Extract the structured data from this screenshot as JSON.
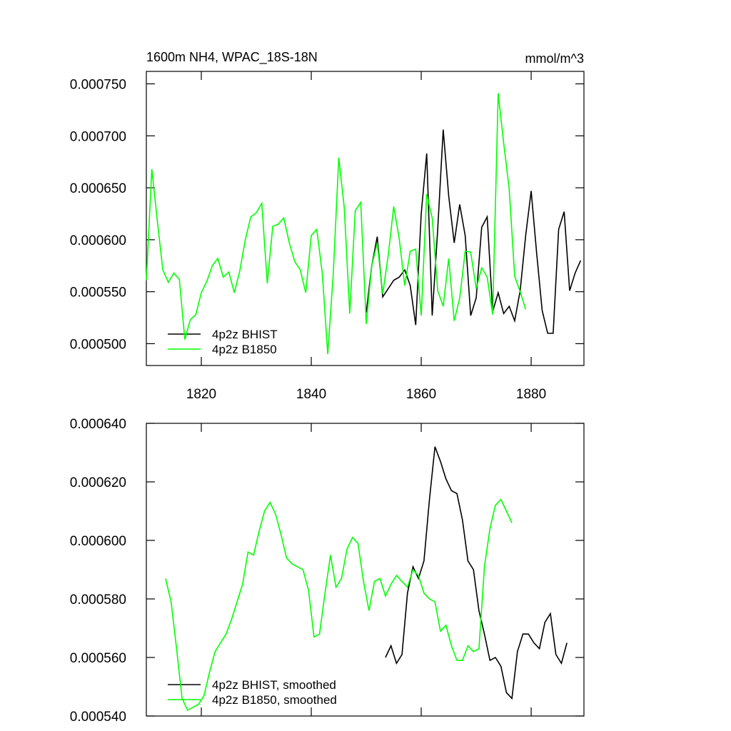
{
  "chart_data": [
    {
      "type": "line",
      "title": "1600m NH4, WPAC_18S-18N",
      "units": "mmol/m^3",
      "xlim": [
        1810,
        1889.6
      ],
      "xticks": [
        1820,
        1840,
        1860,
        1880
      ],
      "ylim": [
        0.000479,
        0.000762
      ],
      "yticks": [
        {
          "value": 0.0005,
          "label": "0.000500"
        },
        {
          "value": 0.00055,
          "label": "0.000550"
        },
        {
          "value": 0.0006,
          "label": "0.000600"
        },
        {
          "value": 0.00065,
          "label": "0.000650"
        },
        {
          "value": 0.0007,
          "label": "0.000700"
        },
        {
          "value": 0.00075,
          "label": "0.000750"
        }
      ],
      "legend": "lower left",
      "series": [
        {
          "name": "4p2z BHIST",
          "color": "#000000",
          "x": [
            1850,
            1851,
            1852,
            1853,
            1854,
            1855,
            1856,
            1857,
            1858,
            1859,
            1860,
            1861,
            1862,
            1863,
            1864,
            1865,
            1866,
            1867,
            1868,
            1869,
            1870,
            1871,
            1872,
            1873,
            1874,
            1875,
            1876,
            1877,
            1878,
            1879,
            1880,
            1881,
            1882,
            1883,
            1884,
            1885,
            1886,
            1887,
            1888,
            1889
          ],
          "values": [
            0.00053,
            0.000575,
            0.000603,
            0.000545,
            0.000553,
            0.000561,
            0.000564,
            0.000571,
            0.000556,
            0.000518,
            0.000625,
            0.000683,
            0.000527,
            0.00061,
            0.000706,
            0.000642,
            0.000597,
            0.000634,
            0.000604,
            0.000527,
            0.000544,
            0.000612,
            0.000622,
            0.000531,
            0.000549,
            0.000529,
            0.000536,
            0.000522,
            0.000551,
            0.000604,
            0.000647,
            0.000587,
            0.000532,
            0.00051,
            0.00051,
            0.00061,
            0.000627,
            0.000551,
            0.000568,
            0.00058
          ]
        },
        {
          "name": "4p2z B1850",
          "color": "#00ff00",
          "x": [
            1810,
            1811,
            1812,
            1813,
            1814,
            1815,
            1816,
            1817,
            1818,
            1819,
            1820,
            1821,
            1822,
            1823,
            1824,
            1825,
            1826,
            1827,
            1828,
            1829,
            1830,
            1831,
            1832,
            1833,
            1834,
            1835,
            1836,
            1837,
            1838,
            1839,
            1840,
            1841,
            1842,
            1843,
            1844,
            1845,
            1846,
            1847,
            1848,
            1849,
            1850,
            1851,
            1852,
            1853,
            1854,
            1855,
            1856,
            1857,
            1858,
            1859,
            1860,
            1861,
            1862,
            1863,
            1864,
            1865,
            1866,
            1867,
            1868,
            1869,
            1870,
            1871,
            1872,
            1873,
            1874,
            1875,
            1876,
            1877,
            1878,
            1879
          ],
          "values": [
            0.000561,
            0.000668,
            0.000618,
            0.000571,
            0.000559,
            0.000568,
            0.000562,
            0.000504,
            0.000523,
            0.000528,
            0.000549,
            0.00056,
            0.000575,
            0.000582,
            0.000564,
            0.000569,
            0.000549,
            0.00057,
            0.0006,
            0.000622,
            0.000626,
            0.000635,
            0.000558,
            0.000613,
            0.000615,
            0.000621,
            0.000597,
            0.000579,
            0.000571,
            0.000549,
            0.000604,
            0.00061,
            0.000568,
            0.00049,
            0.000567,
            0.000679,
            0.000631,
            0.000529,
            0.000628,
            0.000636,
            0.000519,
            0.000575,
            0.000597,
            0.000548,
            0.000585,
            0.000632,
            0.000601,
            0.000556,
            0.000589,
            0.000591,
            0.000527,
            0.000644,
            0.000621,
            0.000551,
            0.000536,
            0.000582,
            0.000522,
            0.000544,
            0.000589,
            0.000588,
            0.000553,
            0.000573,
            0.000564,
            0.000528,
            0.000741,
            0.000693,
            0.000649,
            0.000565,
            0.00055,
            0.000533
          ]
        }
      ]
    },
    {
      "type": "line",
      "xlim": [
        1810,
        1889.6
      ],
      "xticks": [
        1820,
        1840,
        1860,
        1880
      ],
      "ylim": [
        0.00054,
        0.00064
      ],
      "yticks": [
        {
          "value": 0.00054,
          "label": "0.000540"
        },
        {
          "value": 0.00056,
          "label": "0.000560"
        },
        {
          "value": 0.00058,
          "label": "0.000580"
        },
        {
          "value": 0.0006,
          "label": "0.000600"
        },
        {
          "value": 0.00062,
          "label": "0.000620"
        },
        {
          "value": 0.00064,
          "label": "0.000640"
        }
      ],
      "legend": "lower left",
      "series": [
        {
          "name": "4p2z BHIST, smoothed",
          "color": "#000000",
          "x": [
            1853.5,
            1854.5,
            1855.5,
            1856.5,
            1857.5,
            1858.5,
            1859.5,
            1860.5,
            1861.5,
            1862.5,
            1863.5,
            1864.5,
            1865.5,
            1866.5,
            1867.5,
            1868.5,
            1869.5,
            1870.5,
            1871.5,
            1872.5,
            1873.5,
            1874.5,
            1875.5,
            1876.5,
            1877.5,
            1878.5,
            1879.5,
            1880.5,
            1881.5,
            1882.5,
            1883.5,
            1884.5,
            1885.5,
            1886.5
          ],
          "values": [
            0.00056,
            0.000564,
            0.000558,
            0.000561,
            0.000582,
            0.000591,
            0.000587,
            0.000593,
            0.000614,
            0.000632,
            0.000627,
            0.000621,
            0.000617,
            0.000616,
            0.000607,
            0.000593,
            0.00059,
            0.000576,
            0.000568,
            0.000559,
            0.00056,
            0.000557,
            0.000548,
            0.000546,
            0.000562,
            0.000568,
            0.000568,
            0.000565,
            0.000563,
            0.000572,
            0.000575,
            0.000561,
            0.000558,
            0.000565
          ]
        },
        {
          "name": "4p2z B1850, smoothed",
          "color": "#00ff00",
          "x": [
            1813.5,
            1814.5,
            1815.5,
            1816.5,
            1817.5,
            1818.5,
            1819.5,
            1820.5,
            1821.5,
            1822.5,
            1823.5,
            1824.5,
            1825.5,
            1826.5,
            1827.5,
            1828.5,
            1829.5,
            1830.5,
            1831.5,
            1832.5,
            1833.5,
            1834.5,
            1835.5,
            1836.5,
            1837.5,
            1838.5,
            1839.5,
            1840.5,
            1841.5,
            1842.5,
            1843.5,
            1844.5,
            1845.5,
            1846.5,
            1847.5,
            1848.5,
            1849.5,
            1850.5,
            1851.5,
            1852.5,
            1853.5,
            1854.5,
            1855.5,
            1856.5,
            1857.5,
            1858.5,
            1859.5,
            1860.5,
            1861.5,
            1862.5,
            1863.5,
            1864.5,
            1865.5,
            1866.5,
            1867.5,
            1868.5,
            1869.5,
            1870.5,
            1871.5,
            1872.5,
            1873.5,
            1874.5,
            1875.5,
            1876.5
          ],
          "values": [
            0.000587,
            0.000579,
            0.000563,
            0.000546,
            0.000542,
            0.000543,
            0.000544,
            0.000547,
            0.000555,
            0.000562,
            0.000565,
            0.000568,
            0.000573,
            0.000579,
            0.000585,
            0.000596,
            0.000595,
            0.000603,
            0.00061,
            0.000613,
            0.000609,
            0.000602,
            0.000594,
            0.000592,
            0.000591,
            0.00059,
            0.000583,
            0.000567,
            0.000568,
            0.000582,
            0.000595,
            0.000584,
            0.000587,
            0.000597,
            0.000601,
            0.000599,
            0.000586,
            0.000576,
            0.000586,
            0.000587,
            0.000581,
            0.000585,
            0.000588,
            0.000586,
            0.000584,
            0.00059,
            0.000588,
            0.000582,
            0.00058,
            0.000579,
            0.000569,
            0.000571,
            0.000564,
            0.000559,
            0.000559,
            0.000564,
            0.000562,
            0.000563,
            0.000591,
            0.000604,
            0.000612,
            0.000614,
            0.00061,
            0.000606
          ]
        }
      ]
    }
  ]
}
